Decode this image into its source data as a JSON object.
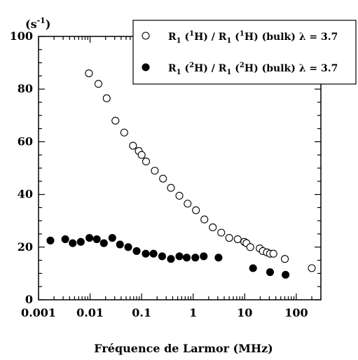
{
  "chart_data": {
    "type": "scatter",
    "xscale": "log",
    "xlim": [
      0.001,
      300
    ],
    "ylim": [
      0,
      100
    ],
    "xticks": [
      0.001,
      0.01,
      0.1,
      1,
      10,
      100
    ],
    "xtick_labels": [
      "0.001",
      "0.01",
      "0.1",
      "1",
      "10",
      "100"
    ],
    "yticks": [
      0,
      20,
      40,
      60,
      80,
      100
    ],
    "ytick_labels": [
      "0",
      "20",
      "40",
      "60",
      "80",
      "100"
    ],
    "xlabel": "Fréquence de Larmor (MHz)",
    "ylabel": {
      "base": "(s",
      "exp": "-1",
      "close": ")"
    },
    "grid": false,
    "legend_position": "top-right",
    "series": [
      {
        "legend": {
          "a": "R",
          "a_sub": "1",
          "b": " (",
          "b_sup": "1",
          "c": "H) / R",
          "c_sub": "1",
          "d": " (",
          "d_sup": "1",
          "e": "H) (bulk) λ = 3.7"
        },
        "marker": "open-circle",
        "x": [
          0.0095,
          0.0145,
          0.021,
          0.031,
          0.046,
          0.068,
          0.088,
          0.1,
          0.122,
          0.18,
          0.26,
          0.37,
          0.54,
          0.78,
          1.13,
          1.65,
          2.4,
          3.5,
          5.0,
          7.3,
          9.8,
          10.8,
          12.8,
          19.5,
          22.5,
          27,
          31,
          36,
          60,
          200
        ],
        "y": [
          86,
          82,
          76.5,
          68,
          63.5,
          58.5,
          56.5,
          55,
          52.5,
          49,
          46,
          42.5,
          39.5,
          36.5,
          34,
          30.5,
          27.5,
          25.5,
          23.5,
          23,
          22,
          21.5,
          20,
          19.5,
          18.5,
          18,
          17.5,
          17.5,
          15.5,
          12
        ]
      },
      {
        "legend": {
          "a": "R",
          "a_sub": "1",
          "b": " (",
          "b_sup": "2",
          "c": "H) / R",
          "c_sub": "1",
          "d": " (",
          "d_sup": "2",
          "e": "H) (bulk) λ = 3.7"
        },
        "marker": "filled-circle",
        "x": [
          0.0017,
          0.0033,
          0.0046,
          0.0066,
          0.0097,
          0.0135,
          0.0185,
          0.027,
          0.038,
          0.055,
          0.08,
          0.12,
          0.17,
          0.25,
          0.37,
          0.54,
          0.75,
          1.1,
          1.6,
          3.1,
          14.5,
          31,
          62
        ],
        "y": [
          22.5,
          23,
          21.5,
          22,
          23.5,
          23,
          21.5,
          23.5,
          21,
          20,
          18.5,
          17.5,
          17.5,
          16.5,
          15.5,
          16.5,
          16,
          16,
          16.5,
          16,
          12,
          10.5,
          9.5
        ]
      }
    ]
  }
}
